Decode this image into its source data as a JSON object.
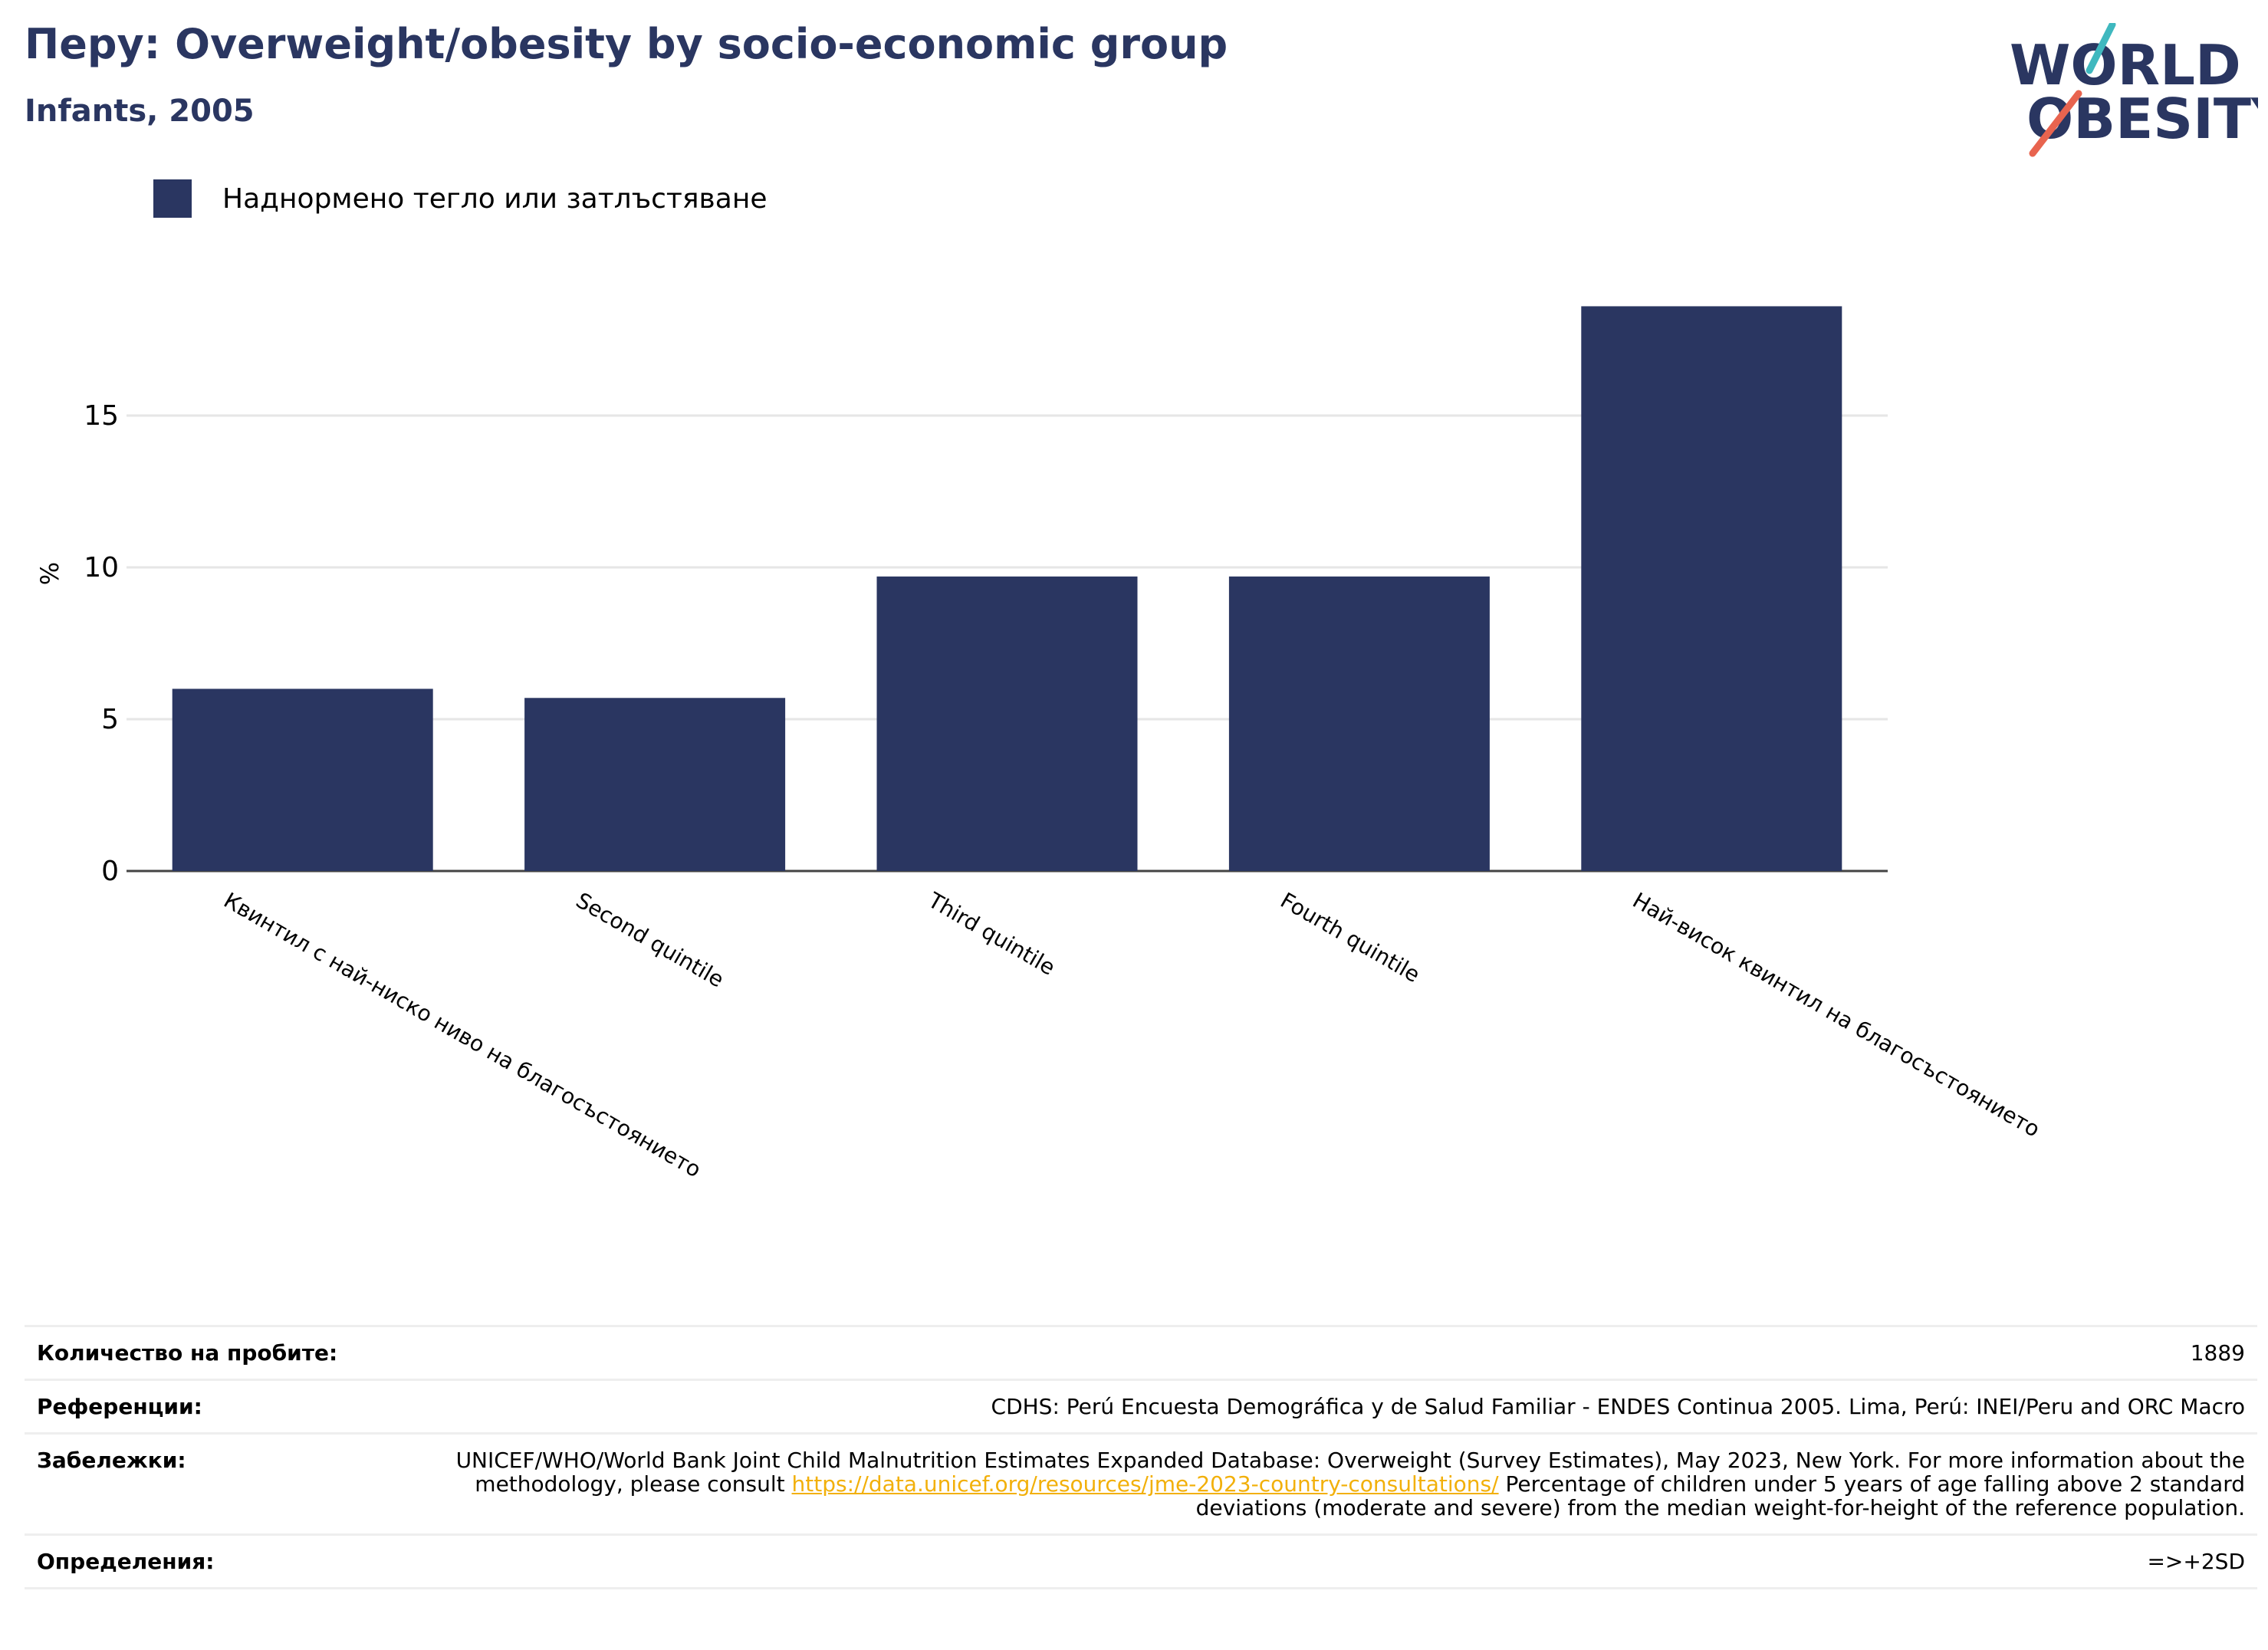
{
  "header": {
    "title": "Перу: Overweight/obesity by socio-economic group",
    "subtitle": "Infants, 2005"
  },
  "logo": {
    "line1": "WORLD",
    "line2": "OBESITY"
  },
  "colors": {
    "bar": "#2a3661",
    "title": "#2a3661",
    "link": "#f2b00a",
    "logo_teal": "#3fb8bf",
    "logo_coral": "#e8644f"
  },
  "chart_data": {
    "type": "bar",
    "categories": [
      "Квинтил с най-ниско ниво на благосъстоянието",
      "Second quintile",
      "Third quintile",
      "Fourth quintile",
      "Най-висок квинтил на благосъстоянието"
    ],
    "series": [
      {
        "name": "Наднормено тегло или затлъстяване",
        "values": [
          6.0,
          5.7,
          9.7,
          9.7,
          18.6
        ]
      }
    ],
    "ylabel": "%",
    "ylim": [
      0,
      20
    ],
    "yticks": [
      0,
      5,
      10,
      15
    ],
    "grid": true,
    "legend": "top-left"
  },
  "info": {
    "rows": [
      {
        "key": "Количество на пробите:",
        "value": "1889"
      },
      {
        "key": "Референции:",
        "value": "CDHS: Perú Encuesta Demográfica y de Salud Familiar - ENDES Continua 2005. Lima, Perú: INEI/Peru and ORC Macro"
      },
      {
        "key": "Забележки:",
        "value_pre": "UNICEF/WHO/World Bank Joint Child Malnutrition Estimates Expanded Database: Overweight (Survey Estimates), May 2023, New York. For more information about the methodology, please consult ",
        "link": "https://data.unicef.org/resources/jme-2023-country-consultations/",
        "value_post": " Percentage of children under 5 years of age falling above 2 standard deviations (moderate and severe) from the median weight-for-height of the reference population."
      },
      {
        "key": "Определения:",
        "value": "=>+2SD"
      }
    ]
  }
}
